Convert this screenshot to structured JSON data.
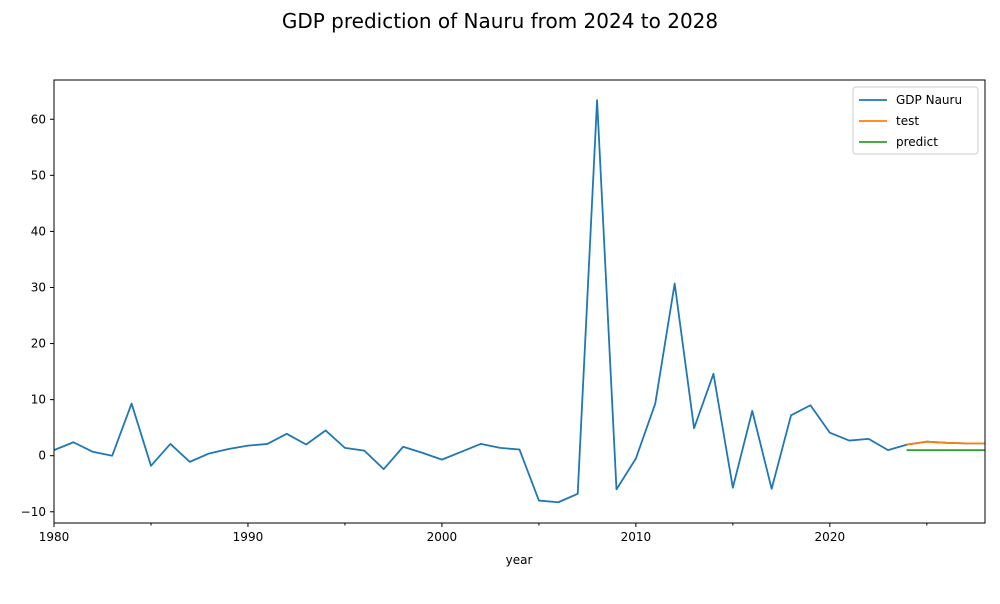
{
  "chart_data": {
    "type": "line",
    "title": "GDP prediction of Nauru from 2024 to 2028",
    "xlabel": "year",
    "ylabel": "",
    "xlim": [
      1980,
      2028
    ],
    "ylim": [
      -12,
      67
    ],
    "x_major_ticks": [
      1980,
      1990,
      2000,
      2010,
      2020
    ],
    "x_minor_ticks": [
      1985,
      1995,
      2005,
      2015,
      2025
    ],
    "y_ticks": [
      -10,
      0,
      10,
      20,
      30,
      40,
      50,
      60
    ],
    "grid": false,
    "legend_position": "top-right",
    "series": [
      {
        "name": "GDP Nauru",
        "color": "#1f77b4",
        "x": [
          1980,
          1981,
          1982,
          1983,
          1984,
          1985,
          1986,
          1987,
          1988,
          1989,
          1990,
          1991,
          1992,
          1993,
          1994,
          1995,
          1996,
          1997,
          1998,
          1999,
          2000,
          2001,
          2002,
          2003,
          2004,
          2005,
          2006,
          2007,
          2008,
          2009,
          2010,
          2011,
          2012,
          2013,
          2014,
          2015,
          2016,
          2017,
          2018,
          2019,
          2020,
          2021,
          2022,
          2023,
          2024,
          2025,
          2026,
          2027,
          2028
        ],
        "values": [
          1.0,
          2.4,
          0.7,
          0.0,
          9.3,
          -1.8,
          2.1,
          -1.1,
          0.4,
          1.2,
          1.8,
          2.1,
          3.9,
          2.0,
          4.5,
          1.4,
          0.9,
          -2.4,
          1.6,
          0.5,
          -0.7,
          0.7,
          2.1,
          1.4,
          1.1,
          -8.0,
          -8.3,
          -6.8,
          63.4,
          -6.0,
          -0.5,
          9.3,
          30.7,
          4.9,
          14.6,
          -5.7,
          8.0,
          -5.9,
          7.2,
          9.0,
          4.1,
          2.7,
          3.0,
          1.0,
          2.0,
          2.5,
          2.3,
          2.2,
          2.2
        ]
      },
      {
        "name": "test",
        "color": "#ff7f0e",
        "x": [
          2024,
          2025,
          2026,
          2027,
          2028
        ],
        "values": [
          2.0,
          2.5,
          2.3,
          2.2,
          2.2
        ]
      },
      {
        "name": "predict",
        "color": "#2ca02c",
        "x": [
          2024,
          2025,
          2026,
          2027,
          2028
        ],
        "values": [
          1.0,
          1.0,
          1.0,
          1.0,
          1.0
        ]
      }
    ]
  }
}
